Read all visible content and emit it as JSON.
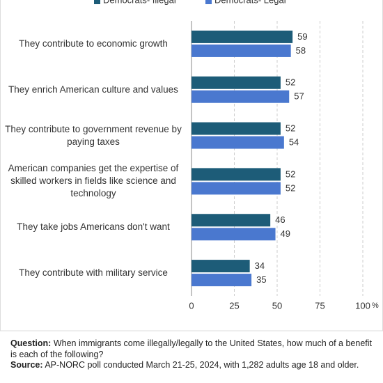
{
  "chart_data": {
    "type": "hbar",
    "categories": [
      "They contribute to economic growth",
      "They enrich American culture and values",
      "They contribute to government revenue by paying taxes",
      "American companies get the expertise of skilled workers in fields like science and technology",
      "They take jobs Americans don't want",
      "They contribute with military service"
    ],
    "series": [
      {
        "name": "Democrats- Illegal",
        "color": "#1d5c78",
        "values": [
          59,
          52,
          52,
          52,
          46,
          34
        ]
      },
      {
        "name": "Democrats- Legal",
        "color": "#4a78cf",
        "values": [
          58,
          57,
          54,
          52,
          49,
          35
        ]
      }
    ],
    "xlim": [
      0,
      100
    ],
    "xticks": [
      0,
      25,
      50,
      75,
      100
    ],
    "xunit": "%",
    "grid": true,
    "notes": [
      {
        "label": "Question:",
        "text": "When immigrants come illegally/legally to the United States, how much of a benefit is each of the following?"
      },
      {
        "label": "Source:",
        "text": "AP-NORC poll conducted March 21-25, 2024, with 1,282 adults age 18 and older."
      }
    ]
  }
}
